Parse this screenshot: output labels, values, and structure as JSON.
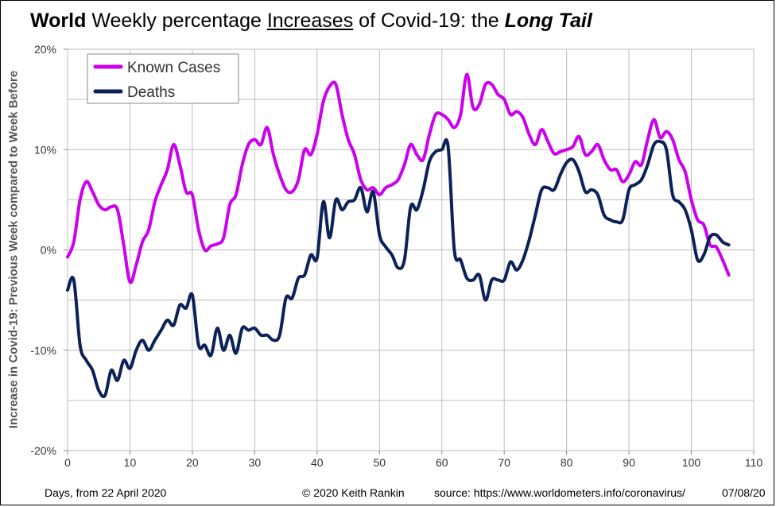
{
  "title": {
    "world": "World",
    "mid1": " Weekly percentage ",
    "increases": "Increases",
    "mid2": " of Covid-19: the ",
    "tail": "Long Tail"
  },
  "footer": {
    "days": "Days, from 22 April 2020",
    "copyright": "© 2020  Keith Rankin",
    "source": "source:  https://www.worldometers.info/coronavirus/",
    "date": "07/08/20"
  },
  "chart_data": {
    "type": "line",
    "ylabel": "Increase in Covid-19: Previous Week compared to Week Before",
    "xlim": [
      0,
      110
    ],
    "ylim": [
      -20,
      20
    ],
    "x_ticks": [
      0,
      10,
      20,
      30,
      40,
      50,
      60,
      70,
      80,
      90,
      100,
      110
    ],
    "y_ticks": [
      -20,
      -10,
      0,
      10,
      20
    ],
    "y_tick_labels": [
      "-20%",
      "-10%",
      "0%",
      "10%",
      "20%"
    ],
    "grid": true,
    "legend_position": "top-left",
    "series": [
      {
        "name": "Known Cases",
        "color": "#cc00ee",
        "points": [
          [
            0,
            -0.7
          ],
          [
            1,
            0.8
          ],
          [
            2,
            5.0
          ],
          [
            3,
            6.8
          ],
          [
            4,
            5.8
          ],
          [
            5,
            4.5
          ],
          [
            6,
            4.0
          ],
          [
            7,
            4.3
          ],
          [
            8,
            4.0
          ],
          [
            9,
            0.5
          ],
          [
            10,
            -3.2
          ],
          [
            11,
            -1.5
          ],
          [
            12,
            0.8
          ],
          [
            13,
            2.0
          ],
          [
            14,
            4.8
          ],
          [
            15,
            6.5
          ],
          [
            16,
            8.0
          ],
          [
            17,
            10.5
          ],
          [
            18,
            8.5
          ],
          [
            19,
            5.8
          ],
          [
            20,
            5.5
          ],
          [
            21,
            2.0
          ],
          [
            22,
            0.0
          ],
          [
            23,
            0.4
          ],
          [
            24,
            0.6
          ],
          [
            25,
            1.2
          ],
          [
            26,
            4.5
          ],
          [
            27,
            5.5
          ],
          [
            28,
            8.5
          ],
          [
            29,
            10.5
          ],
          [
            30,
            11.0
          ],
          [
            31,
            10.5
          ],
          [
            32,
            12.2
          ],
          [
            33,
            9.5
          ],
          [
            34,
            7.5
          ],
          [
            35,
            6.0
          ],
          [
            36,
            5.8
          ],
          [
            37,
            7.0
          ],
          [
            38,
            10.0
          ],
          [
            39,
            9.5
          ],
          [
            40,
            11.5
          ],
          [
            41,
            14.8
          ],
          [
            42,
            16.3
          ],
          [
            43,
            16.5
          ],
          [
            44,
            13.5
          ],
          [
            45,
            11.0
          ],
          [
            46,
            9.5
          ],
          [
            47,
            7.0
          ],
          [
            48,
            6.0
          ],
          [
            49,
            6.2
          ],
          [
            50,
            5.5
          ],
          [
            51,
            6.2
          ],
          [
            52,
            6.5
          ],
          [
            53,
            7.0
          ],
          [
            54,
            8.5
          ],
          [
            55,
            10.5
          ],
          [
            56,
            9.5
          ],
          [
            57,
            9.0
          ],
          [
            58,
            11.5
          ],
          [
            59,
            13.5
          ],
          [
            60,
            13.5
          ],
          [
            61,
            13.0
          ],
          [
            62,
            12.2
          ],
          [
            63,
            13.5
          ],
          [
            64,
            17.5
          ],
          [
            65,
            14.2
          ],
          [
            66,
            14.5
          ],
          [
            67,
            16.5
          ],
          [
            68,
            16.5
          ],
          [
            69,
            15.5
          ],
          [
            70,
            15.0
          ],
          [
            71,
            13.5
          ],
          [
            72,
            13.8
          ],
          [
            73,
            13.2
          ],
          [
            74,
            11.5
          ],
          [
            75,
            10.5
          ],
          [
            76,
            12.0
          ],
          [
            77,
            10.8
          ],
          [
            78,
            9.6
          ],
          [
            79,
            9.8
          ],
          [
            80,
            10.0
          ],
          [
            81,
            10.3
          ],
          [
            82,
            11.3
          ],
          [
            83,
            9.5
          ],
          [
            84,
            9.8
          ],
          [
            85,
            10.5
          ],
          [
            86,
            9.0
          ],
          [
            87,
            8.0
          ],
          [
            88,
            8.0
          ],
          [
            89,
            6.8
          ],
          [
            90,
            7.5
          ],
          [
            91,
            8.8
          ],
          [
            92,
            8.5
          ],
          [
            93,
            11.0
          ],
          [
            94,
            13.0
          ],
          [
            95,
            11.2
          ],
          [
            96,
            11.8
          ],
          [
            97,
            11.0
          ],
          [
            98,
            9.0
          ],
          [
            99,
            7.8
          ],
          [
            100,
            5.0
          ],
          [
            101,
            3.0
          ],
          [
            102,
            2.5
          ],
          [
            103,
            0.5
          ],
          [
            104,
            0.3
          ],
          [
            105,
            -1.0
          ],
          [
            106,
            -2.5
          ]
        ]
      },
      {
        "name": "Deaths",
        "color": "#0b2158",
        "points": [
          [
            0,
            -4.0
          ],
          [
            1,
            -3.0
          ],
          [
            2,
            -9.5
          ],
          [
            3,
            -11.0
          ],
          [
            4,
            -12.0
          ],
          [
            5,
            -14.0
          ],
          [
            6,
            -14.5
          ],
          [
            7,
            -12.0
          ],
          [
            8,
            -13.0
          ],
          [
            9,
            -11.0
          ],
          [
            10,
            -11.8
          ],
          [
            11,
            -10.0
          ],
          [
            12,
            -9.0
          ],
          [
            13,
            -10.0
          ],
          [
            14,
            -9.0
          ],
          [
            15,
            -8.0
          ],
          [
            16,
            -7.0
          ],
          [
            17,
            -7.5
          ],
          [
            18,
            -5.5
          ],
          [
            19,
            -5.8
          ],
          [
            20,
            -4.5
          ],
          [
            21,
            -9.5
          ],
          [
            22,
            -9.5
          ],
          [
            23,
            -10.5
          ],
          [
            24,
            -7.8
          ],
          [
            25,
            -10.0
          ],
          [
            26,
            -8.5
          ],
          [
            27,
            -10.3
          ],
          [
            28,
            -7.8
          ],
          [
            29,
            -8.0
          ],
          [
            30,
            -7.8
          ],
          [
            31,
            -8.5
          ],
          [
            32,
            -8.5
          ],
          [
            33,
            -9.0
          ],
          [
            34,
            -8.5
          ],
          [
            35,
            -4.8
          ],
          [
            36,
            -4.8
          ],
          [
            37,
            -2.8
          ],
          [
            38,
            -2.5
          ],
          [
            39,
            -0.5
          ],
          [
            40,
            -0.8
          ],
          [
            41,
            4.8
          ],
          [
            42,
            1.2
          ],
          [
            43,
            5.0
          ],
          [
            44,
            4.0
          ],
          [
            45,
            4.8
          ],
          [
            46,
            5.0
          ],
          [
            47,
            6.2
          ],
          [
            48,
            3.8
          ],
          [
            49,
            5.8
          ],
          [
            50,
            1.5
          ],
          [
            51,
            0.3
          ],
          [
            52,
            -0.5
          ],
          [
            53,
            -1.8
          ],
          [
            54,
            -1.0
          ],
          [
            55,
            4.3
          ],
          [
            56,
            4.0
          ],
          [
            57,
            6.0
          ],
          [
            58,
            8.8
          ],
          [
            59,
            9.8
          ],
          [
            60,
            10.0
          ],
          [
            61,
            10.3
          ],
          [
            62,
            0.0
          ],
          [
            63,
            -1.0
          ],
          [
            64,
            -2.8
          ],
          [
            65,
            -3.0
          ],
          [
            66,
            -2.5
          ],
          [
            67,
            -5.0
          ],
          [
            68,
            -3.0
          ],
          [
            69,
            -3.0
          ],
          [
            70,
            -3.0
          ],
          [
            71,
            -1.2
          ],
          [
            72,
            -2.0
          ],
          [
            73,
            -1.0
          ],
          [
            74,
            1.0
          ],
          [
            75,
            3.5
          ],
          [
            76,
            6.0
          ],
          [
            77,
            6.2
          ],
          [
            78,
            6.0
          ],
          [
            79,
            7.5
          ],
          [
            80,
            8.7
          ],
          [
            81,
            9.0
          ],
          [
            82,
            7.8
          ],
          [
            83,
            5.8
          ],
          [
            84,
            6.0
          ],
          [
            85,
            5.5
          ],
          [
            86,
            3.5
          ],
          [
            87,
            3.0
          ],
          [
            88,
            2.8
          ],
          [
            89,
            3.0
          ],
          [
            90,
            6.0
          ],
          [
            91,
            6.5
          ],
          [
            92,
            7.0
          ],
          [
            93,
            8.5
          ],
          [
            94,
            10.5
          ],
          [
            95,
            10.8
          ],
          [
            96,
            10.0
          ],
          [
            97,
            5.5
          ],
          [
            98,
            4.8
          ],
          [
            99,
            4.0
          ],
          [
            100,
            2.0
          ],
          [
            101,
            -1.0
          ],
          [
            102,
            -0.5
          ],
          [
            103,
            1.3
          ],
          [
            104,
            1.5
          ],
          [
            105,
            0.8
          ],
          [
            106,
            0.5
          ]
        ]
      }
    ]
  }
}
